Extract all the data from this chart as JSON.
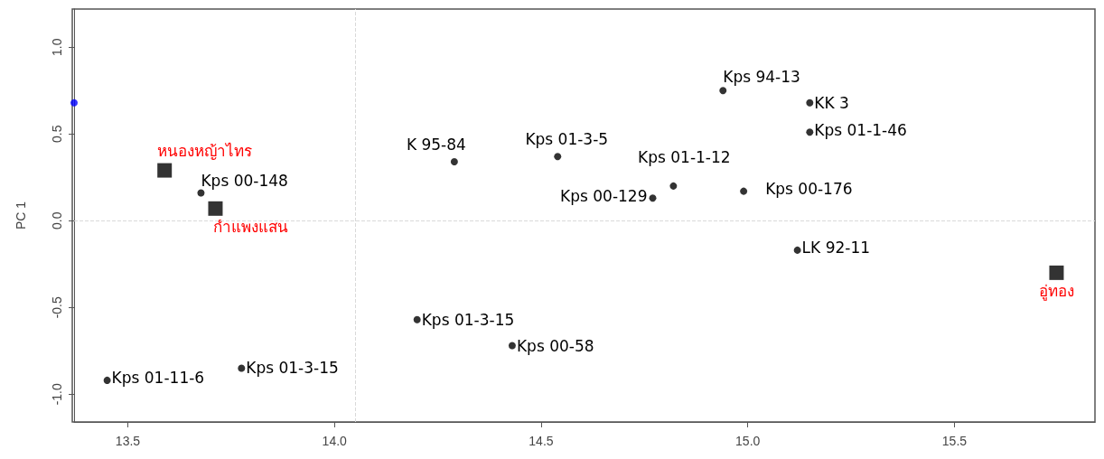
{
  "chart_data": {
    "type": "scatter",
    "ylabel": "PC 1",
    "xlim": [
      13.37,
      15.84
    ],
    "xticks": [
      13.5,
      {
        "value": 14,
        "label": "14.0"
      },
      14.5,
      {
        "value": 15,
        "label": "15.0"
      },
      15.5
    ],
    "ylim": [
      -1.16,
      1.22
    ],
    "yticks": [
      {
        "value": -1,
        "label": "-1.0"
      },
      -0.5,
      {
        "value": 0,
        "label": "0.0"
      },
      0.5,
      {
        "value": 1,
        "label": "1.0"
      }
    ],
    "grid": false,
    "series": [
      {
        "color": "#000000",
        "marker": "circle",
        "x": [
          13.677,
          14.29,
          14.54,
          14.94,
          15.15,
          15.15,
          14.82,
          14.77,
          14.99,
          15.12,
          14.2,
          14.43,
          13.775,
          13.45
        ],
        "values": [
          0.16,
          0.34,
          0.37,
          0.75,
          0.68,
          0.51,
          0.2,
          0.13,
          0.17,
          -0.17,
          -0.57,
          -0.72,
          -0.85,
          -0.92
        ]
      },
      {
        "color": "#000000",
        "marker": "square",
        "x": [
          13.589,
          13.712,
          15.747
        ],
        "values": [
          0.29,
          0.07,
          -0.3
        ]
      },
      {
        "color": "#0000ff",
        "marker": "circle",
        "x": [
          13.37
        ],
        "values": [
          0.68
        ]
      }
    ],
    "ref_lines": [
      {
        "axis": "x",
        "value": 14.054,
        "color": "#d9d9d9",
        "line_style": "dashed"
      },
      {
        "axis": "y",
        "value": 0,
        "color": "#d9d9d9",
        "line_style": "dashed"
      }
    ],
    "annotations": [
      {
        "text": "หนองหญ้าไทร",
        "x": 13.589,
        "y": 0.29
      },
      {
        "text": "กำแพงแสน",
        "x": 13.712,
        "y": 0.07
      },
      {
        "text": "อู่ทอง",
        "x": 15.747,
        "y": -0.3
      },
      {
        "text": "Kps 00-148",
        "x": 13.677,
        "y": 0.16
      },
      {
        "text": "K 95-84",
        "x": 14.29,
        "y": 0.34
      },
      {
        "text": "Kps 01-3-5",
        "x": 14.54,
        "y": 0.37
      },
      {
        "text": "Kps 94-13",
        "x": 14.94,
        "y": 0.75
      },
      {
        "text": "KK 3",
        "x": 15.15,
        "y": 0.68
      },
      {
        "text": "Kps 01-1-46",
        "x": 15.15,
        "y": 0.51
      },
      {
        "text": "Kps 01-1-12",
        "x": 14.82,
        "y": 0.2
      },
      {
        "text": "Kps 00-129",
        "x": 14.77,
        "y": 0.13
      },
      {
        "text": "Kps 00-176",
        "x": 14.99,
        "y": 0.17
      },
      {
        "text": "LK 92-11",
        "x": 15.12,
        "y": -0.17
      },
      {
        "text": "Kps 01-3-15",
        "x": 14.2,
        "y": -0.57
      },
      {
        "text": "Kps 00-58",
        "x": 14.43,
        "y": -0.72
      },
      {
        "text": "Kps 01-3-15",
        "x": 13.775,
        "y": -0.85
      },
      {
        "text": "Kps 01-11-6",
        "x": 13.45,
        "y": -0.92
      }
    ]
  }
}
